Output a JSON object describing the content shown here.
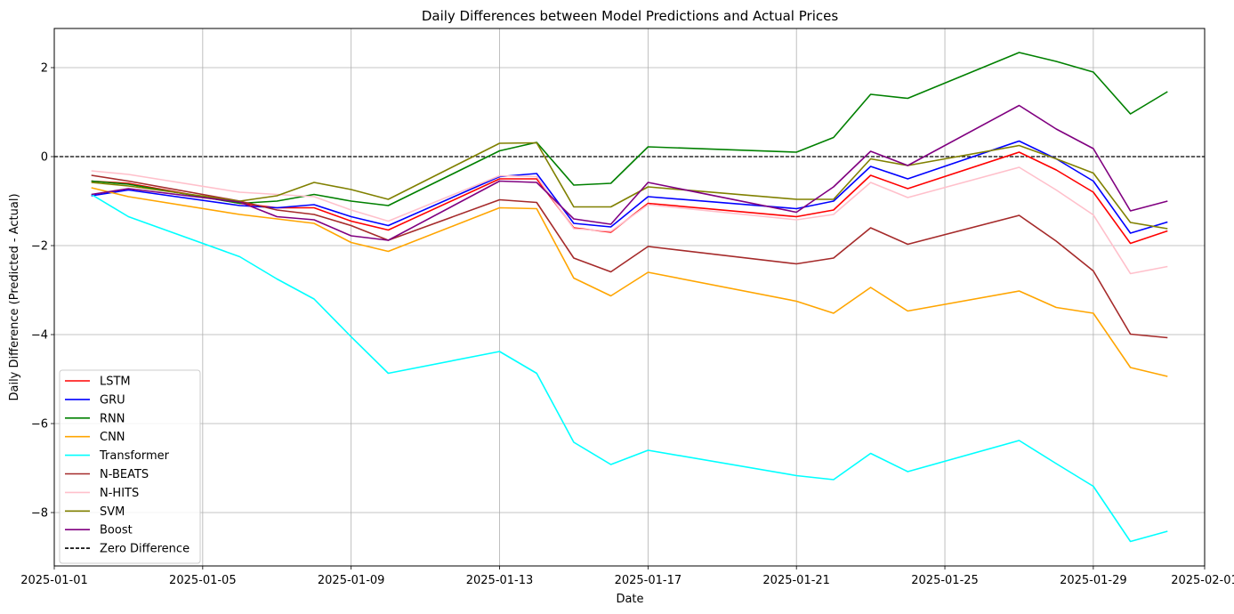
{
  "chart_data": {
    "type": "line",
    "title": "Daily Differences between Model Predictions and Actual Prices",
    "xlabel": "Date",
    "ylabel": "Daily Difference (Predicted - Actual)",
    "x_ticks": [
      "2025-01-01",
      "2025-01-05",
      "2025-01-09",
      "2025-01-13",
      "2025-01-17",
      "2025-01-21",
      "2025-01-25",
      "2025-01-29",
      "2025-02-01"
    ],
    "y_ticks": [
      2,
      0,
      -2,
      -4,
      -6,
      -8
    ],
    "y_tick_labels": [
      "2",
      "0",
      "−2",
      "−4",
      "−6",
      "−8"
    ],
    "xlim": [
      "2025-01-01",
      "2025-02-01"
    ],
    "ylim": [
      -9.2,
      2.88
    ],
    "grid": true,
    "legend_position": "lower-left",
    "x": [
      "2025-01-02",
      "2025-01-03",
      "2025-01-06",
      "2025-01-07",
      "2025-01-08",
      "2025-01-09",
      "2025-01-10",
      "2025-01-13",
      "2025-01-14",
      "2025-01-15",
      "2025-01-16",
      "2025-01-17",
      "2025-01-21",
      "2025-01-22",
      "2025-01-23",
      "2025-01-24",
      "2025-01-27",
      "2025-01-28",
      "2025-01-29",
      "2025-01-30",
      "2025-01-31"
    ],
    "series": [
      {
        "name": "LSTM",
        "color": "#ff0000",
        "values": [
          -0.55,
          -0.6,
          -1.05,
          -1.15,
          -1.15,
          -1.45,
          -1.65,
          -0.5,
          -0.5,
          -1.6,
          -1.7,
          -1.05,
          -1.35,
          -1.2,
          -0.42,
          -0.72,
          0.1,
          -0.3,
          -0.8,
          -1.95,
          -1.67
        ]
      },
      {
        "name": "GRU",
        "color": "#0000ff",
        "values": [
          -0.88,
          -0.75,
          -1.1,
          -1.15,
          -1.08,
          -1.35,
          -1.55,
          -0.45,
          -0.38,
          -1.5,
          -1.58,
          -0.9,
          -1.17,
          -1.0,
          -0.22,
          -0.5,
          0.35,
          -0.05,
          -0.55,
          -1.72,
          -1.47
        ]
      },
      {
        "name": "RNN",
        "color": "#008000",
        "values": [
          -0.55,
          -0.62,
          -1.05,
          -1.0,
          -0.85,
          -1.0,
          -1.1,
          0.13,
          0.32,
          -0.64,
          -0.6,
          0.22,
          0.1,
          0.43,
          1.4,
          1.31,
          2.34,
          2.14,
          1.9,
          0.96,
          1.46
        ]
      },
      {
        "name": "CNN",
        "color": "#ffa500",
        "values": [
          -0.7,
          -0.9,
          -1.3,
          -1.4,
          -1.5,
          -1.93,
          -2.13,
          -1.15,
          -1.17,
          -2.73,
          -3.13,
          -2.6,
          -3.25,
          -3.52,
          -2.94,
          -3.47,
          -3.02,
          -3.39,
          -3.52,
          -4.74,
          -4.94
        ]
      },
      {
        "name": "Transformer",
        "color": "#00ffff",
        "values": [
          -0.85,
          -1.35,
          -2.25,
          -2.75,
          -3.2,
          -4.05,
          -4.87,
          -4.38,
          -4.87,
          -6.42,
          -6.92,
          -6.6,
          -7.17,
          -7.26,
          -6.67,
          -7.08,
          -6.38,
          -6.9,
          -7.41,
          -8.65,
          -8.42
        ]
      },
      {
        "name": "N-BEATS",
        "color": "#a52a2a",
        "values": [
          -0.42,
          -0.55,
          -1.0,
          -1.2,
          -1.3,
          -1.55,
          -1.88,
          -0.97,
          -1.03,
          -2.28,
          -2.59,
          -2.02,
          -2.41,
          -2.28,
          -1.6,
          -1.97,
          -1.32,
          -1.9,
          -2.57,
          -3.99,
          -4.07
        ]
      },
      {
        "name": "N-HITS",
        "color": "#ffc0cb",
        "values": [
          -0.32,
          -0.4,
          -0.8,
          -0.85,
          -0.9,
          -1.2,
          -1.45,
          -0.43,
          -0.45,
          -1.62,
          -1.68,
          -1.08,
          -1.42,
          -1.3,
          -0.58,
          -0.92,
          -0.24,
          -0.75,
          -1.31,
          -2.63,
          -2.47
        ]
      },
      {
        "name": "SVM",
        "color": "#808000",
        "values": [
          -0.58,
          -0.66,
          -1.0,
          -0.88,
          -0.58,
          -0.74,
          -0.96,
          0.3,
          0.31,
          -1.13,
          -1.13,
          -0.68,
          -0.96,
          -0.96,
          -0.05,
          -0.2,
          0.25,
          -0.05,
          -0.37,
          -1.48,
          -1.62
        ]
      },
      {
        "name": "Boost",
        "color": "#800080",
        "values": [
          -0.85,
          -0.72,
          -1.02,
          -1.35,
          -1.42,
          -1.78,
          -1.88,
          -0.55,
          -0.58,
          -1.4,
          -1.52,
          -0.58,
          -1.25,
          -0.68,
          0.12,
          -0.2,
          1.15,
          0.62,
          0.18,
          -1.22,
          -1.0
        ]
      }
    ],
    "reference_line": {
      "name": "Zero Difference",
      "y": 0,
      "color": "#000000",
      "style": "dashed"
    }
  }
}
